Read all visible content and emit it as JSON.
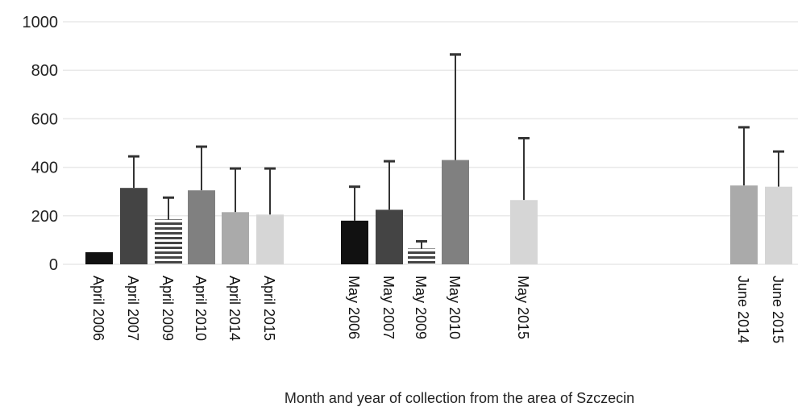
{
  "chart_data": {
    "type": "bar",
    "title": "",
    "xlabel": "Month and year of collection from the area of Szczecin",
    "ylabel": "",
    "ylim": [
      0,
      1000
    ],
    "yticks": [
      0,
      200,
      400,
      600,
      800,
      1000
    ],
    "grid": true,
    "legend": "none",
    "categories": [
      "April 2006",
      "April 2007",
      "April 2009",
      "April 2010",
      "April 2014",
      "April 2015",
      "May 2006",
      "May 2007",
      "May 2009",
      "May 2010",
      "May 2015",
      "June 2014",
      "June 2015"
    ],
    "values": [
      50,
      315,
      185,
      305,
      215,
      205,
      180,
      225,
      65,
      430,
      265,
      325,
      320
    ],
    "error_upper": [
      0,
      445,
      275,
      485,
      395,
      395,
      320,
      425,
      95,
      865,
      520,
      565,
      465
    ],
    "fills": [
      "#111111",
      "#444444",
      "hatch",
      "#808080",
      "#aaaaaa",
      "#d6d6d6",
      "#111111",
      "#444444",
      "hatch",
      "#808080",
      "#d6d6d6",
      "#aaaaaa",
      "#d6d6d6"
    ],
    "grid_color": "#e9e9e9",
    "error_color": "#333333"
  }
}
